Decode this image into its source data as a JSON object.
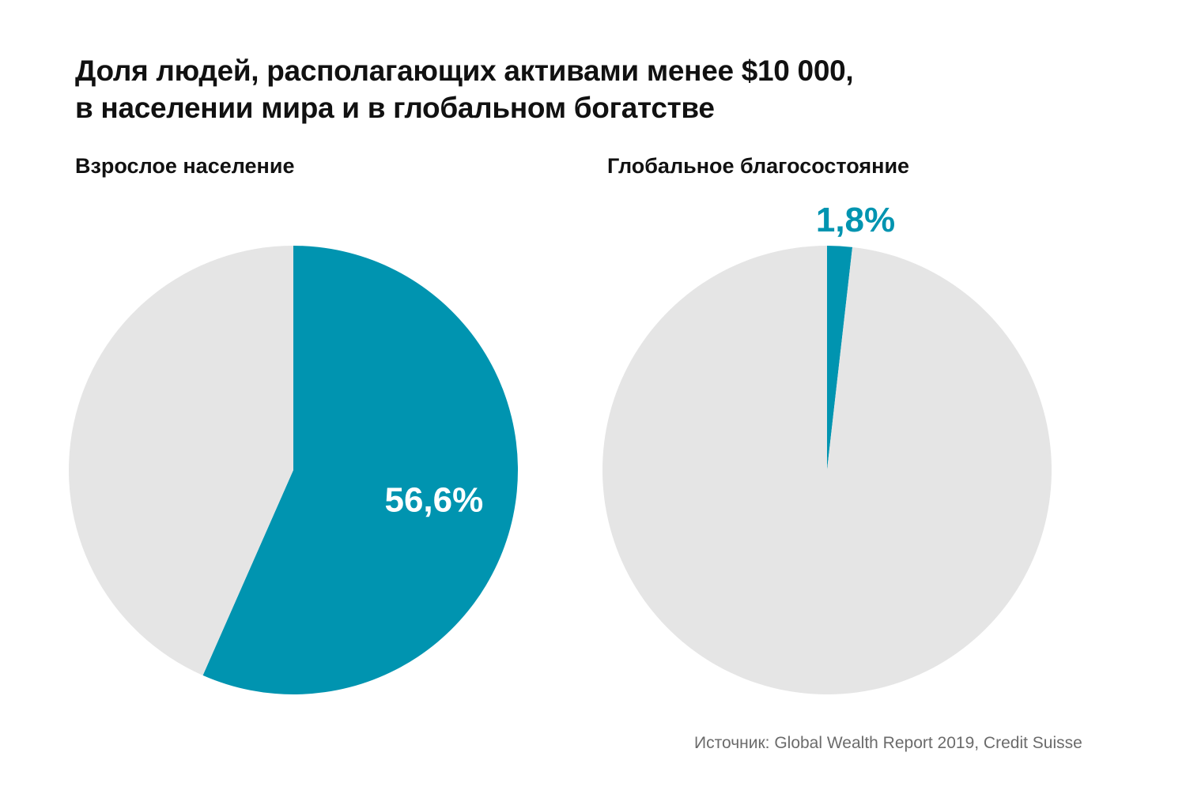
{
  "chart_data": [
    {
      "type": "pie",
      "title": "Взрослое население",
      "slices": [
        {
          "label": "56,6%",
          "value": 56.6,
          "color": "#0094b0",
          "highlight": true
        },
        {
          "label": "",
          "value": 43.4,
          "color": "#e5e5e5"
        }
      ]
    },
    {
      "type": "pie",
      "title": "Глобальное благосостояние",
      "slices": [
        {
          "label": "1,8%",
          "value": 1.8,
          "color": "#0094b0",
          "highlight": true
        },
        {
          "label": "",
          "value": 98.2,
          "color": "#e5e5e5"
        }
      ]
    }
  ],
  "header": {
    "title_line1": "Доля людей, располагающих активами менее $10 000,",
    "title_line2": "в населении мира и в глобальном богатстве"
  },
  "source": "Источник: Global Wealth Report 2019, Credit Suisse"
}
